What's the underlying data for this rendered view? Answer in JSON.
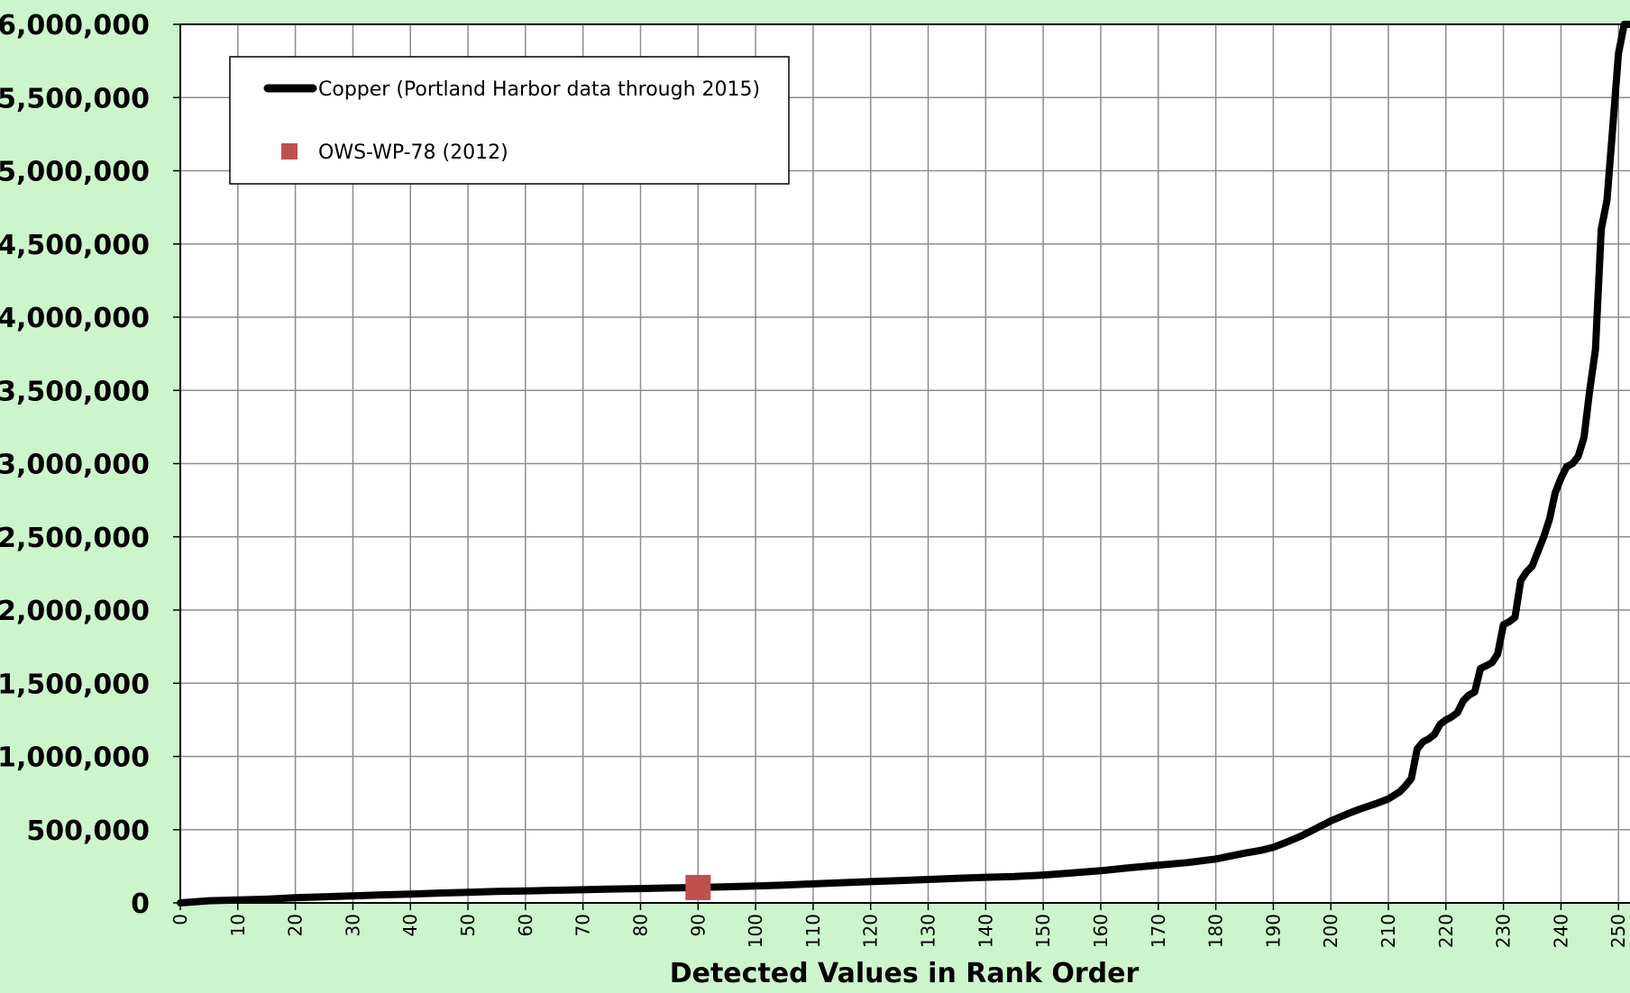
{
  "chart_data": {
    "type": "line",
    "title": "",
    "xlabel": "Detected Values in Rank Order",
    "ylabel": "",
    "xlim": [
      0,
      252
    ],
    "ylim": [
      0,
      6000000
    ],
    "grid": true,
    "legend_position": "top-left",
    "y_ticks": [
      0,
      500000,
      1000000,
      1500000,
      2000000,
      2500000,
      3000000,
      3500000,
      4000000,
      4500000,
      5000000,
      5500000,
      6000000
    ],
    "y_tick_labels": [
      "0",
      "500,000",
      "1,000,000",
      "1,500,000",
      "2,000,000",
      "2,500,000",
      "3,000,000",
      "3,500,000",
      "4,000,000",
      "4,500,000",
      "5,000,000",
      "5,500,000",
      "6,000,000"
    ],
    "x_ticks": [
      0,
      10,
      20,
      30,
      40,
      50,
      60,
      70,
      80,
      90,
      100,
      110,
      120,
      130,
      140,
      150,
      160,
      170,
      180,
      190,
      200,
      210,
      220,
      230,
      240,
      250
    ],
    "x_tick_labels": [
      "0",
      "10",
      "20",
      "30",
      "40",
      "50",
      "60",
      "70",
      "80",
      "90",
      "100",
      "110",
      "120",
      "130",
      "140",
      "150",
      "160",
      "170",
      "180",
      "190",
      "200",
      "210",
      "220",
      "230",
      "240",
      "250"
    ],
    "series": [
      {
        "name": "Copper (Portland Harbor data through 2015)",
        "kind": "line",
        "color": "#000000",
        "x": [
          0,
          5,
          10,
          15,
          20,
          25,
          30,
          35,
          40,
          45,
          50,
          55,
          60,
          65,
          70,
          75,
          80,
          85,
          90,
          95,
          100,
          105,
          110,
          115,
          120,
          125,
          130,
          135,
          140,
          145,
          150,
          155,
          160,
          165,
          170,
          175,
          180,
          185,
          188,
          190,
          192,
          195,
          197,
          200,
          203,
          205,
          208,
          210,
          212,
          213,
          214,
          215,
          216,
          217,
          218,
          219,
          220,
          221,
          222,
          223,
          224,
          225,
          226,
          227,
          228,
          229,
          230,
          231,
          232,
          233,
          234,
          235,
          236,
          237,
          238,
          239,
          240,
          241,
          242,
          243,
          244,
          245,
          246,
          247,
          248,
          249,
          250,
          251,
          252
        ],
        "y": [
          0,
          15000,
          20000,
          25000,
          35000,
          42000,
          48000,
          55000,
          60000,
          67000,
          72000,
          78000,
          82000,
          86000,
          90000,
          95000,
          98000,
          102000,
          105000,
          110000,
          115000,
          122000,
          130000,
          138000,
          145000,
          152000,
          160000,
          168000,
          175000,
          180000,
          190000,
          205000,
          220000,
          240000,
          258000,
          275000,
          300000,
          340000,
          360000,
          380000,
          410000,
          460000,
          500000,
          560000,
          610000,
          640000,
          680000,
          710000,
          760000,
          800000,
          850000,
          1050000,
          1100000,
          1120000,
          1150000,
          1220000,
          1250000,
          1270000,
          1300000,
          1380000,
          1420000,
          1440000,
          1600000,
          1620000,
          1640000,
          1700000,
          1900000,
          1920000,
          1950000,
          2200000,
          2260000,
          2300000,
          2400000,
          2500000,
          2620000,
          2800000,
          2900000,
          2980000,
          3000000,
          3050000,
          3180000,
          3500000,
          3780000,
          4600000,
          4800000,
          5300000,
          5800000,
          6000000,
          6000000
        ]
      },
      {
        "name": "OWS-WP-78 (2012)",
        "kind": "marker",
        "color": "#c0504d",
        "x": [
          90
        ],
        "y": [
          105000
        ]
      }
    ]
  }
}
